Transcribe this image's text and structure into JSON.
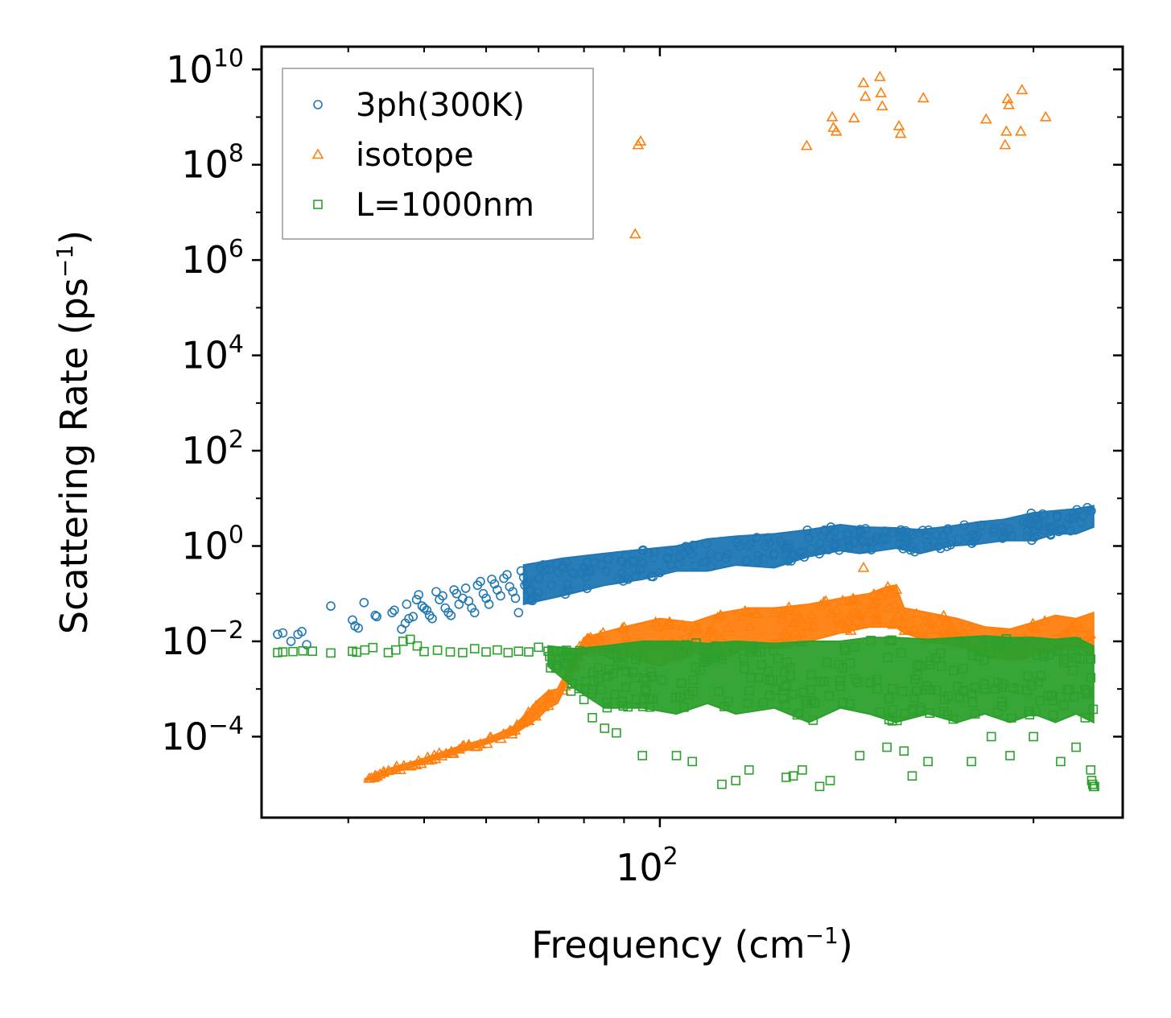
{
  "chart_data": {
    "type": "scatter",
    "title": "",
    "xlabel": "Frequency (cm",
    "xlabel_sup": "−1",
    "xlabel_tail": ")",
    "ylabel": "Scattering Rate (ps",
    "ylabel_sup": "−1",
    "ylabel_tail": ")",
    "xscale": "log",
    "yscale": "log",
    "xlim": [
      31,
      390
    ],
    "ylim": [
      2e-06,
      30000000000
    ],
    "grid": false,
    "legend_position": "top-left",
    "x_ticks": [
      {
        "value": 100,
        "base": "10",
        "exp": "2"
      }
    ],
    "y_ticks": [
      {
        "value": 0.0001,
        "base": "10",
        "exp": "−4"
      },
      {
        "value": 0.01,
        "base": "10",
        "exp": "−2"
      },
      {
        "value": 1,
        "base": "10",
        "exp": "0"
      },
      {
        "value": 100,
        "base": "10",
        "exp": "2"
      },
      {
        "value": 10000,
        "base": "10",
        "exp": "4"
      },
      {
        "value": 1000000,
        "base": "10",
        "exp": "6"
      },
      {
        "value": 100000000,
        "base": "10",
        "exp": "8"
      },
      {
        "value": 10000000000,
        "base": "10",
        "exp": "10"
      }
    ],
    "series": [
      {
        "name": "3ph(300K)",
        "marker": "circle",
        "color": "#1f77b4",
        "points": [
          [
            32.5,
            0.014
          ],
          [
            33.0,
            0.015
          ],
          [
            33.8,
            0.01
          ],
          [
            34.5,
            0.014
          ],
          [
            34.9,
            0.016
          ],
          [
            35.4,
            0.0085
          ],
          [
            38.0,
            0.055
          ],
          [
            40.5,
            0.028
          ],
          [
            40.8,
            0.021
          ],
          [
            41.2,
            0.019
          ],
          [
            41.9,
            0.065
          ],
          [
            43.3,
            0.035
          ],
          [
            43.5,
            0.033
          ],
          [
            45.5,
            0.04
          ],
          [
            45.8,
            0.045
          ],
          [
            46.8,
            0.018
          ],
          [
            47.3,
            0.024
          ],
          [
            47.5,
            0.06
          ],
          [
            47.8,
            0.03
          ],
          [
            48.4,
            0.033
          ],
          [
            48.9,
            0.075
          ],
          [
            49.2,
            0.095
          ],
          [
            49.7,
            0.055
          ],
          [
            50.0,
            0.05
          ],
          [
            50.4,
            0.045
          ],
          [
            50.8,
            0.035
          ],
          [
            51.2,
            0.03
          ],
          [
            51.8,
            0.11
          ],
          [
            52.3,
            0.075
          ],
          [
            52.8,
            0.09
          ],
          [
            53.2,
            0.05
          ],
          [
            53.7,
            0.04
          ],
          [
            54.1,
            0.035
          ],
          [
            54.6,
            0.12
          ],
          [
            55.0,
            0.1
          ],
          [
            55.4,
            0.06
          ],
          [
            56.0,
            0.08
          ],
          [
            56.5,
            0.13
          ],
          [
            57.0,
            0.07
          ],
          [
            57.5,
            0.05
          ],
          [
            58.0,
            0.04
          ],
          [
            58.5,
            0.15
          ],
          [
            59.0,
            0.18
          ],
          [
            59.5,
            0.1
          ],
          [
            60.0,
            0.08
          ],
          [
            60.5,
            0.06
          ],
          [
            61.0,
            0.2
          ],
          [
            61.5,
            0.16
          ],
          [
            62.0,
            0.12
          ],
          [
            62.6,
            0.09
          ],
          [
            63.2,
            0.21
          ],
          [
            63.8,
            0.25
          ],
          [
            64.3,
            0.14
          ],
          [
            64.9,
            0.11
          ],
          [
            65.4,
            0.08
          ],
          [
            66.0,
            0.04
          ],
          [
            66.5,
            0.3
          ],
          [
            67.0,
            0.22
          ],
          [
            67.6,
            0.16
          ]
        ],
        "band": [
          [
            67,
            0.06,
            0.4
          ],
          [
            75,
            0.09,
            0.55
          ],
          [
            85,
            0.15,
            0.7
          ],
          [
            95,
            0.2,
            0.85
          ],
          [
            105,
            0.3,
            1.0
          ],
          [
            115,
            0.3,
            1.4
          ],
          [
            125,
            0.4,
            1.6
          ],
          [
            140,
            0.35,
            1.8
          ],
          [
            155,
            0.6,
            2.2
          ],
          [
            170,
            0.8,
            2.8
          ],
          [
            180,
            0.7,
            2.5
          ],
          [
            200,
            0.9,
            2.4
          ],
          [
            215,
            0.7,
            2.2
          ],
          [
            235,
            1.0,
            2.6
          ],
          [
            255,
            1.1,
            3.2
          ],
          [
            275,
            1.3,
            3.6
          ],
          [
            300,
            1.3,
            5.0
          ],
          [
            320,
            1.8,
            5.5
          ],
          [
            340,
            1.8,
            6.0
          ],
          [
            358,
            2.5,
            7.0
          ]
        ]
      },
      {
        "name": "isotope",
        "marker": "triangle",
        "color": "#ff7f0e",
        "points": [
          [
            93.0,
            3500000
          ],
          [
            93.8,
            260000000
          ],
          [
            94.5,
            310000000
          ],
          [
            154.0,
            250000000
          ],
          [
            166.0,
            1000000000
          ],
          [
            166.6,
            600000000
          ],
          [
            168.0,
            500000000
          ],
          [
            177.0,
            950000000
          ],
          [
            182.0,
            5200000000
          ],
          [
            183.0,
            2700000000
          ],
          [
            191.0,
            7000000000
          ],
          [
            191.6,
            3200000000
          ],
          [
            192.3,
            1700000000
          ],
          [
            202.0,
            650000000
          ],
          [
            203.0,
            450000000
          ],
          [
            217.0,
            2500000000
          ],
          [
            261.0,
            900000000
          ],
          [
            278.0,
            2400000000
          ],
          [
            279.0,
            1800000000
          ],
          [
            277.0,
            500000000
          ],
          [
            276.0,
            260000000
          ],
          [
            290.0,
            3700000000
          ],
          [
            289.0,
            500000000
          ],
          [
            311.0,
            1000000000
          ],
          [
            182.0,
            0.35
          ]
        ],
        "band": [
          [
            42,
            1.2e-05,
            1.3e-05
          ],
          [
            45,
            1.6e-05,
            2.1e-05
          ],
          [
            50,
            2.8e-05,
            3.5e-05
          ],
          [
            55,
            4.5e-05,
            6e-05
          ],
          [
            60,
            7e-05,
            9e-05
          ],
          [
            65,
            0.00011,
            0.00016
          ],
          [
            68,
            0.00018,
            0.00035
          ],
          [
            70,
            0.00025,
            0.0006
          ],
          [
            72,
            0.0004,
            0.0009
          ],
          [
            74,
            0.0005,
            0.001
          ],
          [
            80,
            0.007,
            0.012
          ],
          [
            90,
            0.005,
            0.02
          ],
          [
            100,
            0.003,
            0.03
          ],
          [
            110,
            0.006,
            0.025
          ],
          [
            120,
            0.004,
            0.04
          ],
          [
            130,
            0.008,
            0.05
          ],
          [
            140,
            0.007,
            0.05
          ],
          [
            155,
            0.01,
            0.06
          ],
          [
            170,
            0.015,
            0.08
          ],
          [
            185,
            0.02,
            0.1
          ],
          [
            195,
            0.02,
            0.14
          ],
          [
            200,
            0.02,
            0.15
          ],
          [
            205,
            0.015,
            0.05
          ],
          [
            220,
            0.01,
            0.04
          ],
          [
            240,
            0.008,
            0.03
          ],
          [
            260,
            0.005,
            0.02
          ],
          [
            280,
            0.004,
            0.018
          ],
          [
            300,
            0.005,
            0.025
          ],
          [
            320,
            0.006,
            0.035
          ],
          [
            340,
            0.008,
            0.03
          ],
          [
            358,
            0.005,
            0.04
          ]
        ]
      },
      {
        "name": "L=1000nm",
        "marker": "square",
        "color": "#2ca02c",
        "points": [
          [
            32.5,
            0.0058
          ],
          [
            33.0,
            0.006
          ],
          [
            34.0,
            0.0061
          ],
          [
            35.0,
            0.0063
          ],
          [
            36.0,
            0.0062
          ],
          [
            38.0,
            0.0057
          ],
          [
            40.5,
            0.0062
          ],
          [
            41.0,
            0.0059
          ],
          [
            42.0,
            0.0066
          ],
          [
            43.0,
            0.0074
          ],
          [
            45.0,
            0.0058
          ],
          [
            46.0,
            0.0066
          ],
          [
            47.0,
            0.01
          ],
          [
            48.0,
            0.011
          ],
          [
            49.0,
            0.008
          ],
          [
            50.0,
            0.0061
          ],
          [
            52.0,
            0.0065
          ],
          [
            54.0,
            0.006
          ],
          [
            56.0,
            0.0058
          ],
          [
            58.0,
            0.007
          ],
          [
            60.0,
            0.006
          ],
          [
            62.0,
            0.0066
          ],
          [
            64.0,
            0.0058
          ],
          [
            66.0,
            0.0062
          ],
          [
            68.0,
            0.006
          ],
          [
            70.0,
            0.0075
          ],
          [
            72.0,
            0.0062
          ],
          [
            75.0,
            0.006
          ],
          [
            77.0,
            0.0009
          ],
          [
            80.0,
            0.0006
          ],
          [
            82.0,
            0.00025
          ],
          [
            85.0,
            0.00015
          ],
          [
            88.0,
            0.00012
          ],
          [
            95.0,
            4e-05
          ],
          [
            105.0,
            4e-05
          ],
          [
            110.0,
            3e-05
          ],
          [
            120.0,
            1e-05
          ],
          [
            125.0,
            1.2e-05
          ],
          [
            130.0,
            2e-05
          ],
          [
            145.0,
            1.4e-05
          ],
          [
            148.0,
            1.5e-05
          ],
          [
            152.0,
            2e-05
          ],
          [
            160.0,
            9e-06
          ],
          [
            165.0,
            1.2e-05
          ],
          [
            180.0,
            4e-05
          ],
          [
            195.0,
            6e-05
          ],
          [
            205.0,
            5e-05
          ],
          [
            210.0,
            1.5e-05
          ],
          [
            220.0,
            3e-05
          ],
          [
            250.0,
            3e-05
          ],
          [
            265.0,
            0.0001
          ],
          [
            280.0,
            4e-05
          ],
          [
            300.0,
            0.0001
          ],
          [
            325.0,
            3e-05
          ],
          [
            340.0,
            6e-05
          ],
          [
            355.0,
            2e-05
          ],
          [
            356.0,
            1.2e-05
          ],
          [
            357.0,
            1e-05
          ],
          [
            358.0,
            9e-06
          ],
          [
            359.0,
            9e-06
          ]
        ],
        "band": [
          [
            72,
            0.003,
            0.008
          ],
          [
            78,
            0.001,
            0.007
          ],
          [
            85,
            0.0004,
            0.008
          ],
          [
            95,
            0.0004,
            0.01
          ],
          [
            105,
            0.0003,
            0.01
          ],
          [
            115,
            0.0005,
            0.009
          ],
          [
            125,
            0.0003,
            0.01
          ],
          [
            140,
            0.0004,
            0.009
          ],
          [
            155,
            0.0002,
            0.01
          ],
          [
            170,
            0.0004,
            0.01
          ],
          [
            185,
            0.0003,
            0.012
          ],
          [
            200,
            0.0002,
            0.012
          ],
          [
            220,
            0.0003,
            0.011
          ],
          [
            240,
            0.0002,
            0.012
          ],
          [
            260,
            0.0003,
            0.013
          ],
          [
            280,
            0.0002,
            0.012
          ],
          [
            300,
            0.0003,
            0.012
          ],
          [
            320,
            0.0002,
            0.011
          ],
          [
            340,
            0.0003,
            0.012
          ],
          [
            358,
            0.0002,
            0.008
          ]
        ]
      }
    ]
  }
}
